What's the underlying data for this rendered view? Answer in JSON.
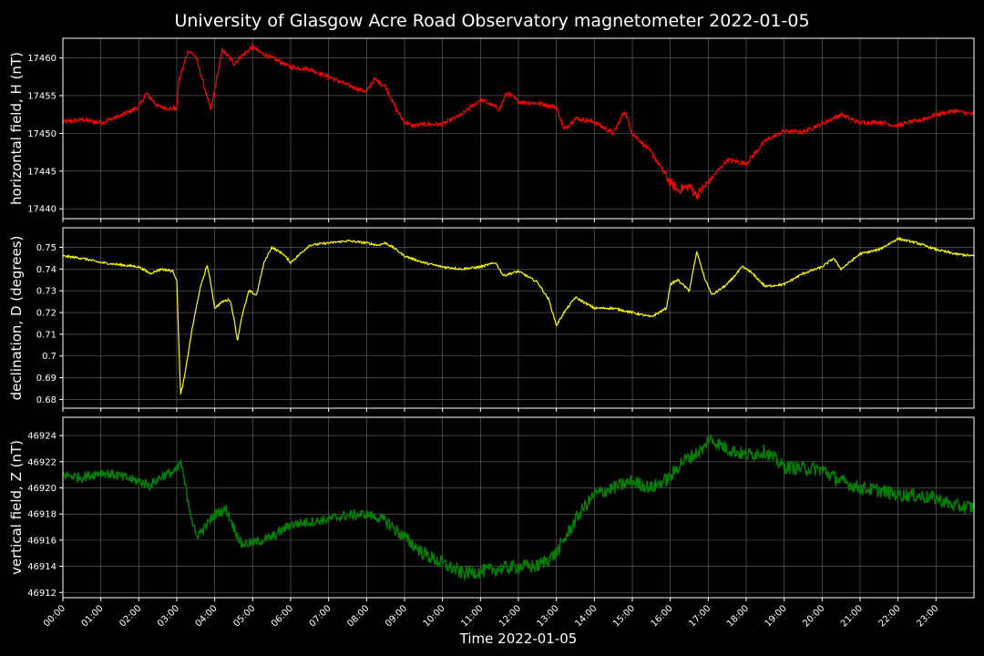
{
  "chart_data": {
    "type": "line",
    "title": "University of Glasgow Acre Road Observatory magnetometer 2022-01-05",
    "xlabel": "Time 2022-01-05",
    "x_ticks": [
      "00:00",
      "01:00",
      "02:00",
      "03:00",
      "04:00",
      "05:00",
      "06:00",
      "07:00",
      "08:00",
      "09:00",
      "10:00",
      "11:00",
      "12:00",
      "13:00",
      "14:00",
      "15:00",
      "16:00",
      "17:00",
      "18:00",
      "19:00",
      "20:00",
      "21:00",
      "22:00",
      "23:00"
    ],
    "x_range": [
      "2022-01-05 00:00",
      "2022-01-05 24:00"
    ],
    "grid": true,
    "panels": [
      {
        "name": "horizontal",
        "ylabel": "horizontal field, H (nT)",
        "color": "#ff0000",
        "ylim": [
          17438.7,
          17462.6
        ],
        "y_ticks": [
          17440,
          17445,
          17450,
          17455,
          17460
        ],
        "x_hours": [
          0,
          0.5,
          1,
          1.5,
          2,
          2.2,
          2.5,
          2.8,
          3,
          3.05,
          3.3,
          3.5,
          3.7,
          3.9,
          4.05,
          4.2,
          4.4,
          4.5,
          4.7,
          5,
          5.2,
          5.5,
          6,
          6.5,
          7,
          7.5,
          8,
          8.2,
          8.5,
          8.8,
          9,
          9.2,
          9.5,
          10,
          10.5,
          11,
          11.5,
          11.7,
          12,
          12.5,
          13,
          13.2,
          13.5,
          14,
          14.5,
          14.8,
          15,
          15.5,
          16,
          16.2,
          16.5,
          16.7,
          17,
          17.5,
          18,
          18.5,
          19,
          19.5,
          20,
          20.5,
          21,
          21.5,
          22,
          22.3,
          22.5,
          23,
          23.5,
          24
        ],
        "values": [
          17451.5,
          17451.8,
          17451.4,
          17452.3,
          17453.5,
          17455.3,
          17453.6,
          17453.3,
          17453.3,
          17456.8,
          17461.0,
          17460.2,
          17456.7,
          17453.0,
          17457.2,
          17461.0,
          17460.0,
          17459.2,
          17460.2,
          17461.5,
          17460.7,
          17460.0,
          17458.8,
          17458.5,
          17457.5,
          17456.4,
          17455.5,
          17457.2,
          17456.2,
          17453.0,
          17451.5,
          17451.0,
          17451.2,
          17451.2,
          17452.5,
          17454.5,
          17453.2,
          17455.4,
          17454.2,
          17454.0,
          17453.5,
          17450.5,
          17452.0,
          17451.5,
          17450.0,
          17453.0,
          17450.0,
          17447.5,
          17443.5,
          17442.5,
          17443.0,
          17441.8,
          17443.5,
          17446.5,
          17446.0,
          17449.0,
          17450.3,
          17450.2,
          17451.3,
          17452.5,
          17451.4,
          17451.5,
          17451.0,
          17451.5,
          17451.6,
          17452.5,
          17453.0,
          17452.5
        ]
      },
      {
        "name": "declination",
        "ylabel": "declination, D (degrees)",
        "color": "#ffff00",
        "ylim": [
          0.676,
          0.759
        ],
        "y_ticks": [
          0.68,
          0.69,
          0.7,
          0.71,
          0.72,
          0.73,
          0.74,
          0.75
        ],
        "x_hours": [
          0,
          0.5,
          1,
          1.5,
          2,
          2.3,
          2.6,
          2.9,
          3.0,
          3.1,
          3.2,
          3.4,
          3.6,
          3.8,
          3.9,
          4.0,
          4.2,
          4.4,
          4.5,
          4.6,
          4.7,
          4.9,
          5.1,
          5.3,
          5.5,
          5.8,
          6,
          6.5,
          7,
          7.5,
          8,
          8.3,
          8.5,
          8.7,
          9,
          9.5,
          10,
          10.5,
          11,
          11.4,
          11.6,
          12,
          12.5,
          12.8,
          13.0,
          13.2,
          13.5,
          14,
          14.5,
          15,
          15.5,
          15.9,
          16.0,
          16.2,
          16.5,
          16.7,
          16.9,
          17.1,
          17.5,
          17.9,
          18.1,
          18.5,
          19,
          19.5,
          20,
          20.3,
          20.5,
          21,
          21.5,
          22,
          22.5,
          23,
          23.5,
          24
        ],
        "values": [
          0.746,
          0.745,
          0.743,
          0.742,
          0.741,
          0.738,
          0.74,
          0.739,
          0.735,
          0.682,
          0.69,
          0.712,
          0.73,
          0.742,
          0.733,
          0.722,
          0.725,
          0.726,
          0.718,
          0.707,
          0.717,
          0.73,
          0.728,
          0.743,
          0.75,
          0.747,
          0.743,
          0.751,
          0.752,
          0.753,
          0.752,
          0.751,
          0.752,
          0.75,
          0.746,
          0.743,
          0.741,
          0.74,
          0.741,
          0.743,
          0.737,
          0.739,
          0.734,
          0.726,
          0.714,
          0.72,
          0.727,
          0.722,
          0.722,
          0.72,
          0.718,
          0.722,
          0.733,
          0.735,
          0.73,
          0.748,
          0.736,
          0.728,
          0.733,
          0.741,
          0.739,
          0.732,
          0.733,
          0.738,
          0.741,
          0.745,
          0.74,
          0.747,
          0.749,
          0.754,
          0.752,
          0.749,
          0.747,
          0.746
        ]
      },
      {
        "name": "vertical",
        "ylabel": "vertical field, Z (nT)",
        "color": "#008000",
        "ylim": [
          46911.6,
          46925.4
        ],
        "y_ticks": [
          46912,
          46914,
          46916,
          46918,
          46920,
          46922,
          46924
        ],
        "x_hours": [
          0,
          0.5,
          1,
          1.5,
          2,
          2.3,
          2.6,
          3.0,
          3.1,
          3.3,
          3.5,
          3.7,
          4.0,
          4.3,
          4.5,
          4.7,
          5.0,
          5.5,
          6,
          6.5,
          7,
          7.5,
          8,
          8.5,
          9,
          9.5,
          10,
          10.5,
          11,
          11.5,
          12,
          12.5,
          13,
          13.3,
          13.6,
          14,
          14.5,
          15,
          15.5,
          16,
          16.3,
          16.6,
          16.9,
          17.0,
          17.5,
          18,
          18.5,
          19,
          19.5,
          20,
          20.5,
          21,
          21.5,
          22,
          22.5,
          23,
          23.5,
          24
        ],
        "values": [
          46921.0,
          46920.8,
          46921.2,
          46920.9,
          46920.5,
          46920.2,
          46920.9,
          46921.3,
          46922.0,
          46919.0,
          46916.3,
          46916.8,
          46918.0,
          46918.4,
          46917.0,
          46915.7,
          46915.8,
          46916.2,
          46917.2,
          46917.4,
          46917.6,
          46917.9,
          46918.0,
          46917.5,
          46916.2,
          46915.0,
          46914.2,
          46913.5,
          46913.6,
          46913.8,
          46914.0,
          46914.0,
          46915.0,
          46916.5,
          46918.0,
          46919.5,
          46920.0,
          46920.5,
          46920.0,
          46920.8,
          46922.0,
          46922.5,
          46923.0,
          46923.8,
          46923.0,
          46922.5,
          46922.8,
          46921.6,
          46921.5,
          46921.4,
          46920.5,
          46920.0,
          46919.8,
          46919.5,
          46919.4,
          46919.2,
          46918.6,
          46918.5
        ]
      }
    ]
  }
}
